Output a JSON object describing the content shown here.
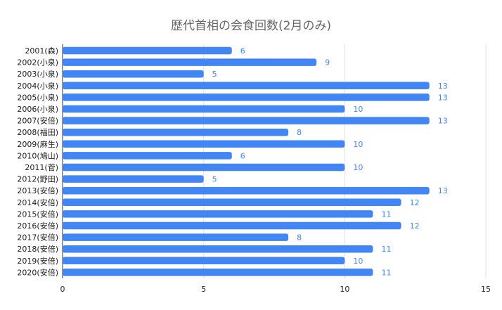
{
  "chart_data": {
    "type": "bar",
    "orientation": "horizontal",
    "title": "歴代首相の会食回数(2月のみ)",
    "xlabel": "",
    "ylabel": "",
    "xlim": [
      0,
      15
    ],
    "x_ticks": [
      0,
      5,
      10,
      15
    ],
    "grid": true,
    "legend": "none",
    "bar_color": "#4285F4",
    "label_color": "#4285F4",
    "categories": [
      "2001(森)",
      "2002(小泉)",
      "2003(小泉)",
      "2004(小泉)",
      "2005(小泉)",
      "2006(小泉)",
      "2007(安倍)",
      "2008(福田)",
      "2009(麻生)",
      "2010(鳩山)",
      "2011(菅)",
      "2012(野田)",
      "2013(安倍)",
      "2014(安倍)",
      "2015(安倍)",
      "2016(安倍)",
      "2017(安倍)",
      "2018(安倍)",
      "2019(安倍)",
      "2020(安倍)"
    ],
    "values": [
      6,
      9,
      5,
      13,
      13,
      10,
      13,
      8,
      10,
      6,
      10,
      5,
      13,
      12,
      11,
      12,
      8,
      11,
      10,
      11
    ]
  }
}
